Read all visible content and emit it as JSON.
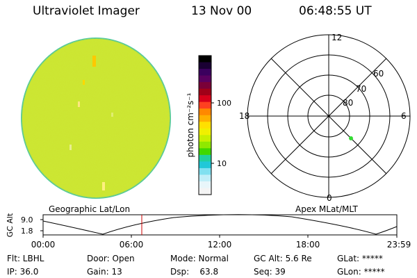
{
  "header": {
    "instrument": "Ultraviolet Imager",
    "date": "13 Nov 00",
    "time": "06:48:55 UT"
  },
  "colorbar": {
    "unit_label": "photon cm⁻²s⁻¹",
    "tick_labels": [
      "100",
      "10"
    ],
    "colors": [
      "#000000",
      "#1a0033",
      "#3b005e",
      "#5a0060",
      "#7a0038",
      "#a00018",
      "#d8001a",
      "#ff4020",
      "#ff8800",
      "#ffb000",
      "#ffe000",
      "#f0f000",
      "#c8f000",
      "#90e800",
      "#40d800",
      "#20d0a0",
      "#20c8d8",
      "#80e0f0",
      "#c0eef8",
      "#e8f6fa",
      "#f4f4f4"
    ]
  },
  "polar_plot": {
    "mlt_labels": {
      "top": "12",
      "left": "18",
      "right": "6",
      "bottom": "0"
    },
    "lat_labels": [
      "60",
      "70",
      "80"
    ],
    "dot_color": "#33dd33"
  },
  "timeline": {
    "ylabel": "GC Alt",
    "y_ticks": [
      "9.0",
      "1.8"
    ],
    "left_title": "Geographic Lat/Lon",
    "right_title": "Apex MLat/MLT",
    "x_ticks": [
      "00:00",
      "06:00",
      "12:00",
      "18:00",
      "23:59"
    ],
    "marker_color": "#cc0000"
  },
  "status": {
    "col1": [
      "Flt: LBHL",
      "IP: 36.0"
    ],
    "col2": [
      "Door: Open",
      "Gain: 13"
    ],
    "col3": [
      "Mode: Normal",
      "Dsp:    63.8"
    ],
    "col4": [
      "GC Alt: 5.6 Re",
      "Seq: 39"
    ],
    "col5": [
      "GLat: *****",
      "GLon: *****"
    ]
  }
}
